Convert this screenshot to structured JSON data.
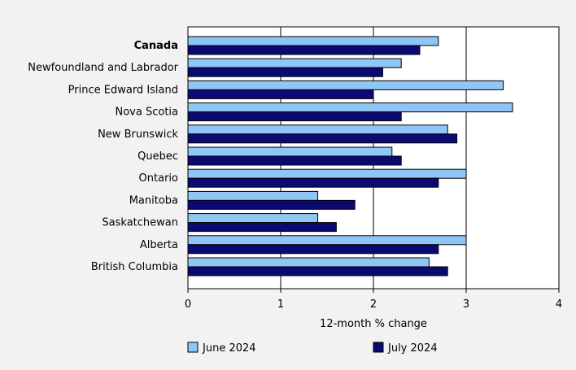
{
  "chart_data": {
    "type": "bar",
    "orientation": "horizontal",
    "categories": [
      "Canada",
      "Newfoundland and Labrador",
      "Prince Edward Island",
      "Nova Scotia",
      "New Brunswick",
      "Quebec",
      "Ontario",
      "Manitoba",
      "Saskatchewan",
      "Alberta",
      "British Columbia"
    ],
    "bold_categories": [
      "Canada"
    ],
    "series": [
      {
        "name": "June 2024",
        "color": "#8fc6f5",
        "values": [
          2.7,
          2.3,
          3.4,
          3.5,
          2.8,
          2.2,
          3.0,
          1.4,
          1.4,
          3.0,
          2.6
        ]
      },
      {
        "name": "July 2024",
        "color": "#0b0a73",
        "values": [
          2.5,
          2.1,
          2.0,
          2.3,
          2.9,
          2.3,
          2.7,
          1.8,
          1.6,
          2.7,
          2.8
        ]
      }
    ],
    "xlabel": "12-month % change",
    "xlim": [
      0,
      4
    ],
    "xticks": [
      "0",
      "1",
      "2",
      "3",
      "4"
    ],
    "grid": true,
    "legend_position": "bottom"
  }
}
